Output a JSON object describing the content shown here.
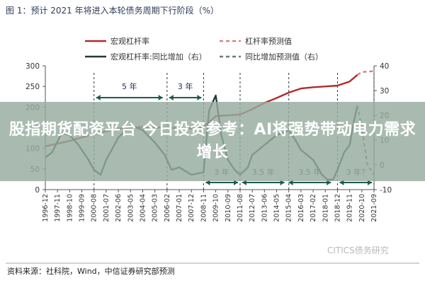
{
  "headline": "股指期货配资平台 今日投资参考：AI将强势带动电力需求增长",
  "chart_data": {
    "type": "line",
    "title": "图 1：预计 2021 年将进入本轮债务周期下行阶段（%）",
    "legend": [
      {
        "label": "宏观杠杆率",
        "color": "#b22b2b",
        "style": "solid"
      },
      {
        "label": "杠杆率预测值",
        "color": "#d98080",
        "style": "dashed"
      },
      {
        "label": "宏观杠杆率:同比增加（右）",
        "color": "#1f3b34",
        "style": "solid"
      },
      {
        "label": "同比增加预测值（右）",
        "color": "#6a7d78",
        "style": "dashed"
      }
    ],
    "y_left": {
      "ticks": [
        "0",
        "50",
        "100",
        "150",
        "200",
        "250",
        "300"
      ],
      "range": [
        0,
        300
      ]
    },
    "y_right": {
      "ticks": [
        "-10",
        "0",
        "10",
        "20",
        "30",
        "40"
      ],
      "range": [
        -10,
        40
      ]
    },
    "x_ticks": [
      "1996-12",
      "1997-11",
      "1998-10",
      "1999-09",
      "2000-08",
      "2001-07",
      "2002-06",
      "2003-05",
      "2004-04",
      "2005-03",
      "2006-02",
      "2007-01",
      "2007-12",
      "2008-11",
      "2009-10",
      "2010-09",
      "2011-08",
      "2012-07",
      "2013-06",
      "2014-05",
      "2015-04",
      "2016-03",
      "2017-02",
      "2018-01",
      "2018-12",
      "2019-11",
      "2020-10",
      "2021-09"
    ],
    "annotations": {
      "upper": [
        {
          "label": "5 年",
          "from": "2000-08",
          "to": "2005-12"
        },
        {
          "label": "3 年",
          "from": "2006-02",
          "to": "2008-11"
        }
      ],
      "lower": [
        {
          "label": "3 年",
          "from": "2008-11",
          "to": "2011-08"
        },
        {
          "label": "3.5 年",
          "from": "2011-08",
          "to": "2015-02"
        },
        {
          "label": "3.5 年",
          "from": "2015-02",
          "to": "2018-08"
        },
        {
          "label": "3 年?",
          "from": "2018-12",
          "to": "2021-09"
        }
      ]
    },
    "series": [
      {
        "name": "宏观杠杆率",
        "axis": "left",
        "x": [
          "1996-12",
          "1998-10",
          "2000-08",
          "2002-06",
          "2004-04",
          "2006-02",
          "2007-12",
          "2008-11",
          "2009-10",
          "2010-09",
          "2011-08",
          "2012-07",
          "2013-06",
          "2014-05",
          "2015-04",
          "2016-03",
          "2017-02",
          "2018-01",
          "2018-12",
          "2019-11",
          "2020-06"
        ],
        "values": [
          105,
          118,
          135,
          148,
          152,
          150,
          148,
          152,
          178,
          180,
          182,
          195,
          210,
          222,
          235,
          245,
          248,
          250,
          252,
          262,
          278
        ]
      },
      {
        "name": "杠杆率预测值",
        "axis": "left",
        "x": [
          "2020-06",
          "2020-10",
          "2021-03",
          "2021-09"
        ],
        "values": [
          278,
          285,
          286,
          287
        ]
      },
      {
        "name": "宏观杠杆率:同比增加（右）",
        "axis": "right",
        "x": [
          "1996-12",
          "1997-06",
          "1998-03",
          "1998-10",
          "1999-06",
          "2000-03",
          "2000-08",
          "2001-02",
          "2001-07",
          "2002-06",
          "2003-05",
          "2004-04",
          "2005-03",
          "2005-12",
          "2006-06",
          "2007-01",
          "2007-12",
          "2008-11",
          "2009-04",
          "2009-10",
          "2010-03",
          "2010-09",
          "2011-03",
          "2011-08",
          "2012-03",
          "2012-07",
          "2013-06",
          "2014-05",
          "2015-04",
          "2015-10",
          "2016-03",
          "2017-02",
          "2017-10",
          "2018-03",
          "2018-08",
          "2018-12",
          "2019-06",
          "2019-11",
          "2020-03",
          "2020-06"
        ],
        "values": [
          3,
          5,
          13,
          12,
          8,
          2,
          -2,
          -4,
          2,
          11,
          16,
          14,
          9,
          4,
          -2,
          -1,
          -4,
          -3,
          22,
          28,
          12,
          2,
          -2,
          -4,
          -1,
          4,
          8,
          12,
          14,
          10,
          6,
          2,
          -4,
          -6,
          -6,
          -2,
          5,
          8,
          18,
          24
        ]
      },
      {
        "name": "同比增加预测值（右）",
        "axis": "right",
        "x": [
          "2020-06",
          "2020-10",
          "2021-03",
          "2021-09"
        ],
        "values": [
          24,
          15,
          0,
          -4
        ]
      }
    ]
  },
  "source": "资料来源：社科院，Wind，中信证券研究部预测",
  "watermark": "CITICS债务研究"
}
